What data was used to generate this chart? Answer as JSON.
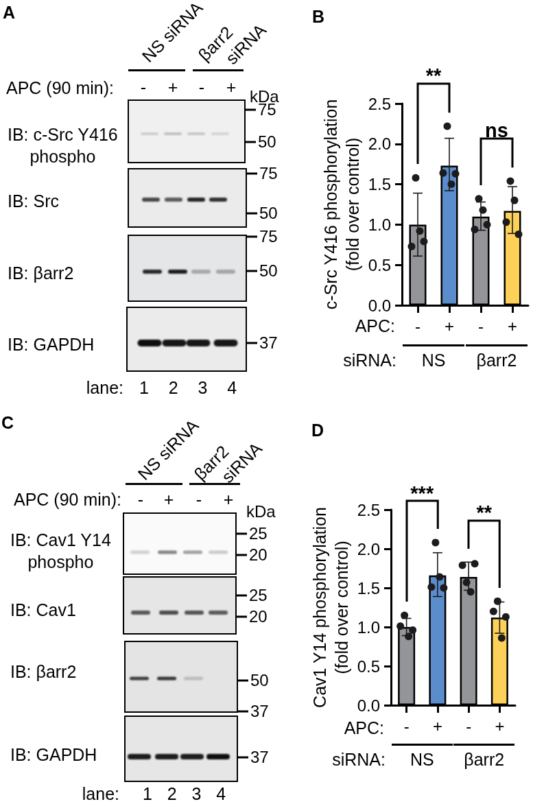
{
  "chart_data": [
    {
      "type": "other",
      "title": "A",
      "annotations": [
        "NS siRNA",
        "βarr2\nsiRNA",
        "APC (90 min):",
        "-",
        "+",
        "-",
        "+",
        "kDa",
        "IB: c-Src Y416\nphospho",
        "75",
        "50",
        "IB: Src",
        "75",
        "50",
        "IB: βarr2",
        "75",
        "50",
        "IB: GAPDH",
        "37",
        "lane:",
        "1 2 3 4"
      ]
    },
    {
      "type": "bar",
      "title": "B",
      "ylabel": "c-Src Y416 phosphorylation\n(fold over control)",
      "xlabel": "APC:",
      "categories": [
        "-",
        "+",
        "-",
        "+"
      ],
      "ylim": [
        0,
        2.5
      ],
      "yticks": [
        {
          "value": 0,
          "label": "0.0"
        },
        0.5,
        {
          "value": 1,
          "label": "1.0"
        },
        1.5,
        {
          "value": 2,
          "label": "2.0"
        },
        2.5
      ],
      "marker": "circle",
      "annotations": [
        "**",
        "ns",
        "siRNA:",
        "NS",
        "βarr2"
      ],
      "series": [
        {
          "type": "bar",
          "colors": [
            "#939598",
            "#5b8dcd",
            "#939598",
            "#fdd059"
          ],
          "values": [
            1.0,
            1.73,
            1.1,
            1.17
          ],
          "errors": [
            [
              0.61,
              1.39
            ],
            [
              1.42,
              2.07
            ],
            [
              0.93,
              1.28
            ],
            [
              0.89,
              1.47
            ]
          ]
        },
        {
          "type": "scatter",
          "color": "#1c1c1c",
          "values": [
            0.73,
            1.64,
            0.94,
            1.03
          ]
        },
        {
          "type": "scatter",
          "color": "#1c1c1c",
          "values": [
            1.58,
            2.22,
            1.32,
            1.54
          ]
        },
        {
          "type": "scatter",
          "color": "#1c1c1c",
          "values": [
            0.92,
            1.5,
            1.18,
            1.3
          ]
        },
        {
          "type": "scatter",
          "color": "#1c1c1c",
          "values": [
            0.79,
            1.63,
            1.0,
            0.88
          ]
        }
      ]
    },
    {
      "type": "other",
      "title": "C",
      "annotations": [
        "NS siRNA",
        "βarr2\nsiRNA",
        "APC (90 min):",
        "-",
        "+",
        "-",
        "+",
        "kDa",
        "IB: Cav1 Y14\nphospho",
        "25",
        "20",
        "IB: Cav1",
        "25",
        "20",
        "IB: βarr2",
        "50",
        "37",
        "IB: GAPDH",
        "37",
        "lane:",
        "1 2 3 4"
      ]
    },
    {
      "type": "bar",
      "title": "D",
      "ylabel": "Cav1 Y14 phosphorylation\n(fold over control)",
      "xlabel": "APC:",
      "categories": [
        "-",
        "+",
        "-",
        "+"
      ],
      "ylim": [
        0,
        2.5
      ],
      "yticks": [
        {
          "value": 0,
          "label": "0.0"
        },
        0.5,
        {
          "value": 1,
          "label": "1.0"
        },
        1.5,
        {
          "value": 2,
          "label": "2.0"
        },
        2.5
      ],
      "marker": "circle",
      "annotations": [
        "***",
        "**",
        "siRNA:",
        "NS",
        "βarr2"
      ],
      "series": [
        {
          "type": "bar",
          "colors": [
            "#939598",
            "#5b8dcd",
            "#939598",
            "#fdd059"
          ],
          "values": [
            1.0,
            1.66,
            1.64,
            1.12
          ],
          "errors": [
            [
              0.89,
              1.11
            ],
            [
              1.39,
              1.95
            ],
            [
              1.47,
              1.83
            ],
            [
              0.92,
              1.32
            ]
          ]
        },
        {
          "type": "scatter",
          "color": "#1c1c1c",
          "values": [
            1.01,
            1.51,
            1.79,
            1.2
          ]
        },
        {
          "type": "scatter",
          "color": "#1c1c1c",
          "values": [
            1.15,
            2.08,
            1.57,
            1.33
          ]
        },
        {
          "type": "scatter",
          "color": "#1c1c1c",
          "values": [
            0.88,
            1.64,
            1.45,
            0.86
          ]
        },
        {
          "type": "scatter",
          "color": "#1c1c1c",
          "values": [
            0.96,
            1.5,
            1.81,
            1.13
          ]
        }
      ]
    }
  ]
}
